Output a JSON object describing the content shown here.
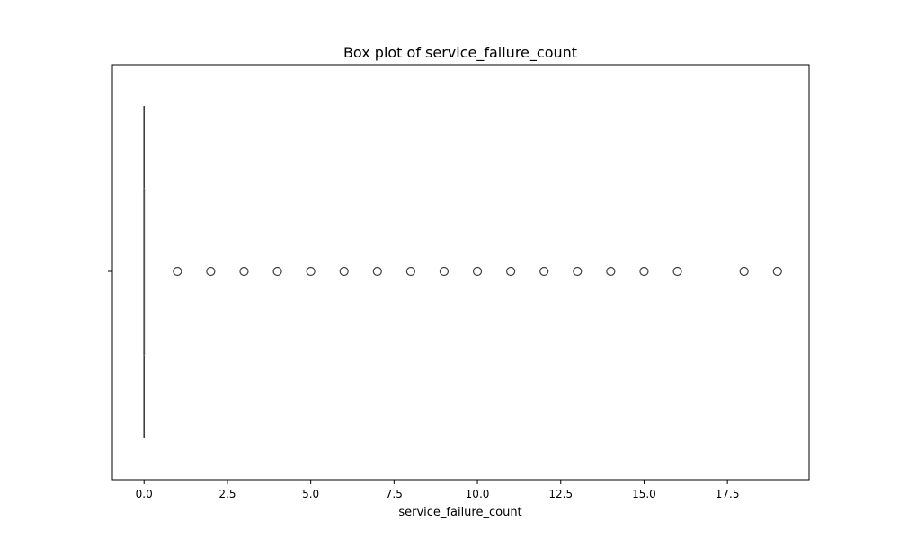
{
  "chart_data": {
    "type": "box",
    "title": "Box plot of service_failure_count",
    "xlabel": "service_failure_count",
    "ylabel": "",
    "xlim": [
      -0.95,
      19.95
    ],
    "xticks": [
      0.0,
      2.5,
      5.0,
      7.5,
      10.0,
      12.5,
      15.0,
      17.5
    ],
    "xtick_labels": [
      "0.0",
      "2.5",
      "5.0",
      "7.5",
      "10.0",
      "12.5",
      "15.0",
      "17.5"
    ],
    "grid": false,
    "orientation": "horizontal",
    "box": {
      "min": 0,
      "q1": 0,
      "median": 0,
      "q3": 0,
      "max": 0
    },
    "outliers": [
      1,
      2,
      3,
      4,
      5,
      6,
      7,
      8,
      9,
      10,
      11,
      12,
      13,
      14,
      15,
      16,
      18,
      19
    ],
    "colors": {
      "line": "#3f3f3f",
      "outlier_edge": "#3f3f3f",
      "axes": "#000000"
    }
  }
}
